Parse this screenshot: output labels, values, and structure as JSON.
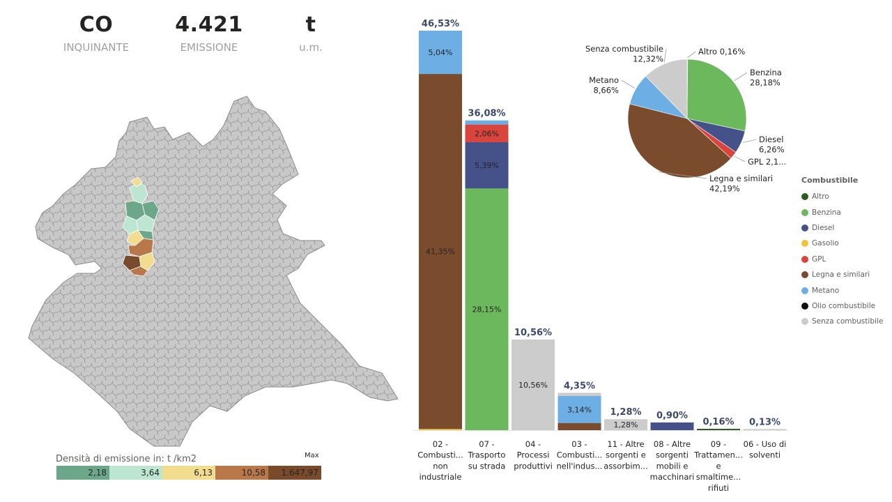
{
  "kpis": [
    {
      "value": "CO",
      "label": "INQUINANTE"
    },
    {
      "value": "4.421",
      "label": "EMISSIONE"
    },
    {
      "value": "t",
      "label": "u.m."
    }
  ],
  "map": {
    "legend_title": "Densità di emissione in:  t /km2",
    "legend_max": "Max",
    "legend_segments": [
      {
        "label": "2,18",
        "color": "#6da789"
      },
      {
        "label": "3,64",
        "color": "#bce5d2"
      },
      {
        "label": "6,13",
        "color": "#f2dd8e"
      },
      {
        "label": "10,58",
        "color": "#b9784a"
      },
      {
        "label": "1.647,97",
        "color": "#7a4a2c"
      }
    ]
  },
  "colors": {
    "Altro": "#2e5c1f",
    "Benzina": "#6cb85c",
    "Diesel": "#45528a",
    "Gasolio": "#f1c43e",
    "GPL": "#d9443d",
    "Legna e similari": "#7b4b2d",
    "Metano": "#6daee5",
    "Olio combustibile": "#111111",
    "Senza combustibile": "#cccccc"
  },
  "chart_data": [
    {
      "type": "bar",
      "stacked": true,
      "categories": [
        "02 - Combusti... non industriale",
        "07 - Trasporto su strada",
        "04 - Processi produttivi",
        "03 - Combusti... nell'indus...",
        "11 - Altre sorgenti e assorbim...",
        "08 - Altre sorgenti mobili e macchinari",
        "09 - Trattamen... e smaltime... rifiuti",
        "06 - Uso di solventi"
      ],
      "category_lines": [
        [
          "02 -",
          "Combusti...",
          "non",
          "industriale"
        ],
        [
          "07 -",
          "Trasporto",
          "su strada"
        ],
        [
          "04 -",
          "Processi",
          "produttivi"
        ],
        [
          "03 -",
          "Combusti...",
          "nell'indus..."
        ],
        [
          "11 - Altre",
          "sorgenti e",
          "assorbim..."
        ],
        [
          "08 - Altre",
          "sorgenti",
          "mobili e",
          "macchinari"
        ],
        [
          "09 -",
          "Trattamen...",
          "e",
          "smaltime...",
          "rifiuti"
        ],
        [
          "06 - Uso di",
          "solventi"
        ]
      ],
      "totals": [
        "46,53%",
        "36,08%",
        "10,56%",
        "4,35%",
        "1,28%",
        "0,90%",
        "0,16%",
        "0,13%"
      ],
      "total_values": [
        46.53,
        36.08,
        10.56,
        4.35,
        1.28,
        0.9,
        0.16,
        0.13
      ],
      "series": [
        {
          "name": "Gasolio",
          "values": [
            0.14,
            0,
            0,
            0,
            0,
            0,
            0,
            0
          ],
          "labels": [
            "",
            "",
            "",
            "",
            "",
            "",
            "",
            ""
          ]
        },
        {
          "name": "Altro",
          "values": [
            0,
            0,
            0,
            0,
            0,
            0,
            0.16,
            0
          ],
          "labels": [
            "",
            "",
            "",
            "",
            "",
            "",
            "",
            ""
          ]
        },
        {
          "name": "Legna e similari",
          "values": [
            41.35,
            0,
            0,
            0.84,
            0,
            0,
            0,
            0
          ],
          "labels": [
            "41,35%",
            "",
            "",
            "",
            "",
            "",
            "",
            ""
          ]
        },
        {
          "name": "Benzina",
          "values": [
            0,
            28.15,
            0,
            0,
            0,
            0,
            0,
            0
          ],
          "labels": [
            "",
            "28,15%",
            "",
            "",
            "",
            "",
            "",
            ""
          ]
        },
        {
          "name": "Diesel",
          "values": [
            0,
            5.39,
            0,
            0,
            0,
            0.9,
            0,
            0
          ],
          "labels": [
            "",
            "5,39%",
            "",
            "",
            "",
            "",
            "",
            ""
          ]
        },
        {
          "name": "GPL",
          "values": [
            0,
            2.06,
            0,
            0,
            0,
            0,
            0,
            0
          ],
          "labels": [
            "",
            "2,06%",
            "",
            "",
            "",
            "",
            "",
            ""
          ]
        },
        {
          "name": "Metano",
          "values": [
            5.04,
            0.48,
            0,
            3.14,
            0,
            0,
            0,
            0
          ],
          "labels": [
            "5,04%",
            "",
            "",
            "3,14%",
            "",
            "",
            "",
            ""
          ]
        },
        {
          "name": "Senza combustibile",
          "values": [
            0,
            0,
            10.56,
            0.37,
            1.28,
            0,
            0,
            0.13
          ],
          "labels": [
            "",
            "",
            "10,56%",
            "",
            "1,28%",
            "",
            "",
            ""
          ]
        }
      ]
    },
    {
      "type": "pie",
      "slices": [
        {
          "name": "Altro",
          "value": 0.16,
          "label_name": "Altro",
          "label_value": "0,16%"
        },
        {
          "name": "Benzina",
          "value": 28.18,
          "label_name": "Benzina",
          "label_value": "28,18%"
        },
        {
          "name": "Diesel",
          "value": 6.26,
          "label_name": "Diesel",
          "label_value": "6,26%"
        },
        {
          "name": "GPL",
          "value": 2.1,
          "label_name": "GPL",
          "label_value": "2,1..."
        },
        {
          "name": "Legna e similari",
          "value": 42.19,
          "label_name": "Legna e similari",
          "label_value": "42,19%"
        },
        {
          "name": "Metano",
          "value": 8.66,
          "label_name": "Metano",
          "label_value": "8,66%"
        },
        {
          "name": "Senza combustibile",
          "value": 12.32,
          "label_name": "Senza combustibile",
          "label_value": "12,32%"
        }
      ],
      "legend_title": "Combustibile",
      "legend": [
        "Altro",
        "Benzina",
        "Diesel",
        "Gasolio",
        "GPL",
        "Legna e similari",
        "Metano",
        "Olio combustibile",
        "Senza combustibile"
      ]
    }
  ]
}
